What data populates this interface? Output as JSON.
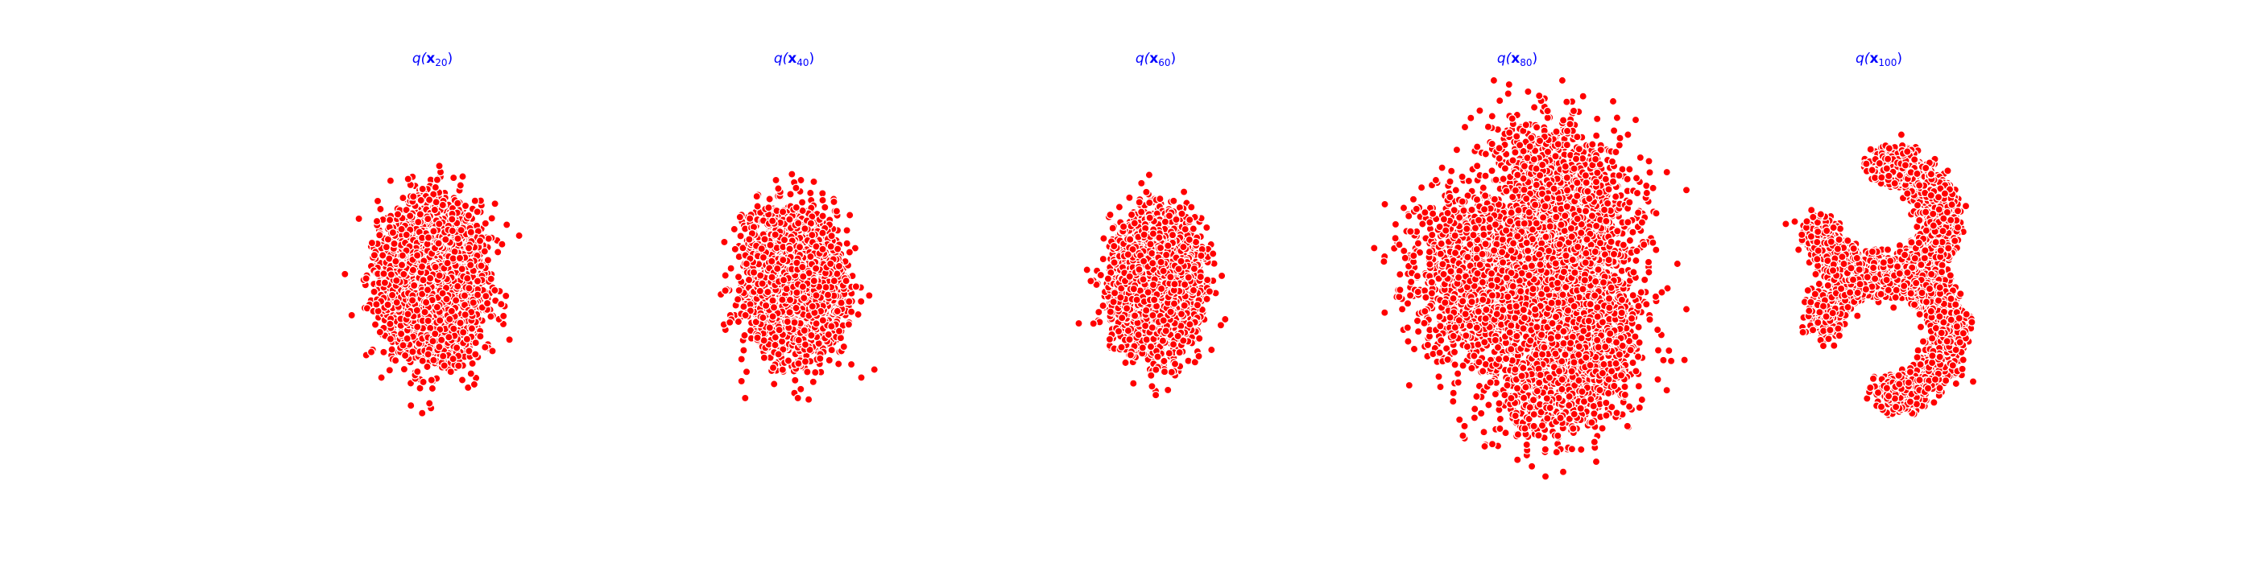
{
  "figure": {
    "background": "#ffffff",
    "title_color": "#0000ff",
    "point_color": "#ff0000",
    "point_edge_color": "#ffffff"
  },
  "chart_data": [
    {
      "type": "scatter",
      "title": "q(x20)",
      "title_parts": {
        "prefix": "q(",
        "symbol": "x",
        "subscript": "20",
        "suffix": ")"
      },
      "point_count": 5000,
      "distribution": {
        "shape": "blob",
        "x_center": 0.0,
        "y_center": 0.0,
        "x_spread": 0.55,
        "y_spread": 0.85
      },
      "axes": "off"
    },
    {
      "type": "scatter",
      "title": "q(x40)",
      "title_parts": {
        "prefix": "q(",
        "symbol": "x",
        "subscript": "40",
        "suffix": ")"
      },
      "point_count": 5000,
      "distribution": {
        "shape": "blob",
        "x_center": 0.0,
        "y_center": 0.0,
        "x_spread": 0.5,
        "y_spread": 0.75
      },
      "axes": "off"
    },
    {
      "type": "scatter",
      "title": "q(x60)",
      "title_parts": {
        "prefix": "q(",
        "symbol": "x",
        "subscript": "60",
        "suffix": ")"
      },
      "point_count": 5000,
      "distribution": {
        "shape": "blob",
        "x_center": 0.0,
        "y_center": 0.0,
        "x_spread": 0.46,
        "y_spread": 0.72
      },
      "axes": "off"
    },
    {
      "type": "scatter",
      "title": "q(x80)",
      "title_parts": {
        "prefix": "q(",
        "symbol": "x",
        "subscript": "80",
        "suffix": ")"
      },
      "point_count": 5000,
      "distribution": {
        "shape": "s-curve",
        "noise": 0.42
      },
      "axes": "off"
    },
    {
      "type": "scatter",
      "title": "q(x100)",
      "title_parts": {
        "prefix": "q(",
        "symbol": "x",
        "subscript": "100",
        "suffix": ")"
      },
      "point_count": 5000,
      "distribution": {
        "shape": "s-curve",
        "noise": 0.12
      },
      "axes": "off"
    }
  ]
}
